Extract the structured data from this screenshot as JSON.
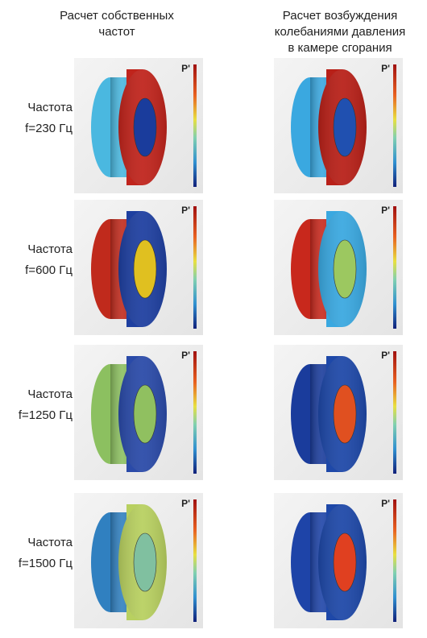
{
  "header": {
    "columns": [
      {
        "lines": [
          "Расчет собственных",
          "частот"
        ]
      },
      {
        "lines": [
          "Расчет возбуждения",
          "колебаниями давления",
          "в камере сгорания"
        ]
      }
    ]
  },
  "rows": [
    {
      "label": [
        "Частота",
        "f=230 Гц"
      ],
      "panels": [
        {
          "legend": "P'"
        },
        {
          "legend": "P'"
        }
      ]
    },
    {
      "label": [
        "Частота",
        "f=600 Гц"
      ],
      "panels": [
        {
          "legend": "P'"
        },
        {
          "legend": "P'"
        }
      ]
    },
    {
      "label": [
        "Частота",
        "f=1250 Гц"
      ],
      "panels": [
        {
          "legend": "P'"
        },
        {
          "legend": "P'"
        }
      ]
    },
    {
      "label": [
        "Частота",
        "f=1500 Гц"
      ],
      "panels": [
        {
          "legend": "P'"
        },
        {
          "legend": "P'"
        }
      ]
    }
  ]
}
